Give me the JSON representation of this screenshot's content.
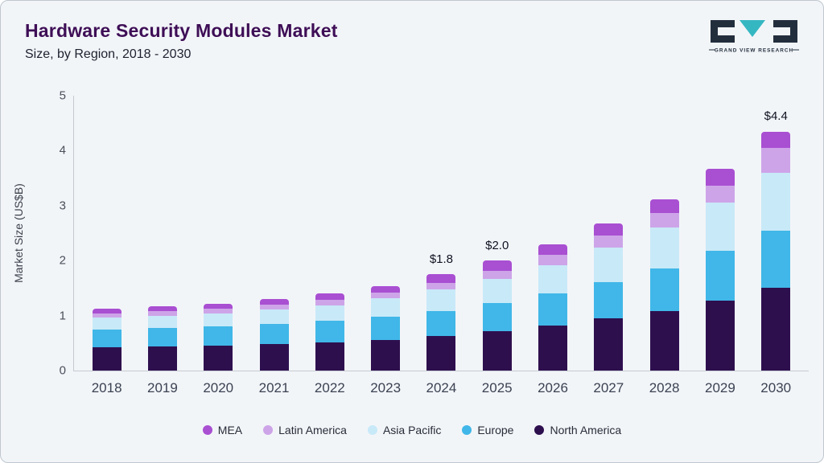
{
  "header": {
    "title": "Hardware Security Modules Market",
    "subtitle": "Size, by Region, 2018 - 2030"
  },
  "logo": {
    "text": "GRAND VIEW RESEARCH",
    "accent_color": "#35b7c2",
    "dark_color": "#232e3d"
  },
  "chart_data": {
    "type": "bar",
    "stacked": true,
    "title": "Hardware Security Modules Market Size, by Region, 2018 - 2030",
    "xlabel": "",
    "ylabel": "Market Size (US$B)",
    "ylim": [
      0,
      5
    ],
    "yticks": [
      0,
      1,
      2,
      3,
      4,
      5
    ],
    "grid": false,
    "legend_position": "bottom",
    "categories": [
      "2018",
      "2019",
      "2020",
      "2021",
      "2022",
      "2023",
      "2024",
      "2025",
      "2026",
      "2027",
      "2028",
      "2029",
      "2030"
    ],
    "series": [
      {
        "name": "North America",
        "values": [
          0.42,
          0.44,
          0.45,
          0.48,
          0.51,
          0.56,
          0.63,
          0.71,
          0.82,
          0.95,
          1.08,
          1.27,
          1.5
        ]
      },
      {
        "name": "Europe",
        "values": [
          0.32,
          0.33,
          0.35,
          0.37,
          0.39,
          0.42,
          0.45,
          0.52,
          0.58,
          0.66,
          0.78,
          0.91,
          1.04
        ]
      },
      {
        "name": "Asia Pacific",
        "values": [
          0.22,
          0.23,
          0.24,
          0.26,
          0.29,
          0.33,
          0.39,
          0.44,
          0.52,
          0.63,
          0.74,
          0.88,
          1.06
        ]
      },
      {
        "name": "Latin America",
        "values": [
          0.08,
          0.08,
          0.09,
          0.09,
          0.1,
          0.11,
          0.13,
          0.15,
          0.18,
          0.21,
          0.26,
          0.3,
          0.45
        ]
      },
      {
        "name": "MEA",
        "values": [
          0.08,
          0.09,
          0.09,
          0.1,
          0.11,
          0.12,
          0.15,
          0.18,
          0.2,
          0.22,
          0.26,
          0.31,
          0.3
        ]
      }
    ],
    "colors": {
      "North America": "#2e0f4e",
      "Europe": "#40b7e8",
      "Asia Pacific": "#c8e9f8",
      "Latin America": "#cda4e8",
      "MEA": "#a94fd2"
    },
    "legend": [
      "MEA",
      "Latin America",
      "Asia Pacific",
      "Europe",
      "North America"
    ],
    "annotations": [
      {
        "category": "2024",
        "text": "$1.8"
      },
      {
        "category": "2025",
        "text": "$2.0"
      },
      {
        "category": "2030",
        "text": "$4.4"
      }
    ]
  }
}
